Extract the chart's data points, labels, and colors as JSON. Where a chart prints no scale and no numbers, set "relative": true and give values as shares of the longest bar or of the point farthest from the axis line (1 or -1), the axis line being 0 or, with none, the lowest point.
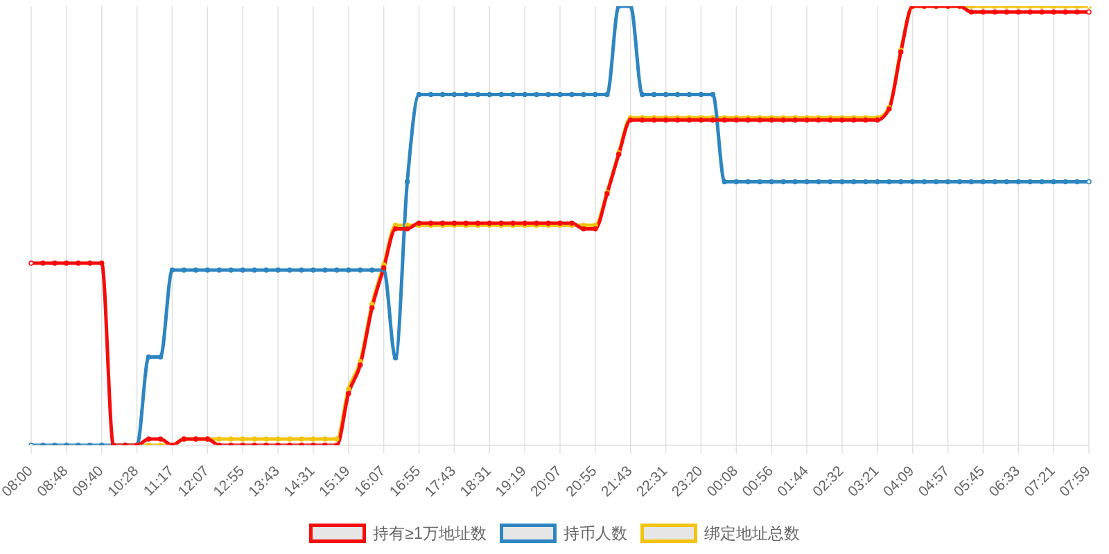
{
  "chart_data": {
    "type": "line",
    "relative": true,
    "categories": [
      "08:00",
      null,
      null,
      "08:48",
      null,
      null,
      "09:40",
      null,
      null,
      "10:28",
      null,
      null,
      "11:17",
      null,
      null,
      "12:07",
      null,
      null,
      "12:55",
      null,
      null,
      "13:43",
      null,
      null,
      "14:31",
      null,
      null,
      "15:19",
      null,
      null,
      "16:07",
      null,
      null,
      "16:55",
      null,
      null,
      "17:43",
      null,
      null,
      "18:31",
      null,
      null,
      "19:19",
      null,
      null,
      "20:07",
      null,
      null,
      "20:55",
      null,
      null,
      "21:43",
      null,
      null,
      "22:31",
      null,
      null,
      "23:20",
      null,
      null,
      "00:08",
      null,
      null,
      "00:56",
      null,
      null,
      "01:44",
      null,
      null,
      "02:32",
      null,
      null,
      "03:21",
      null,
      null,
      "04:09",
      null,
      null,
      "04:57",
      null,
      null,
      "05:45",
      null,
      null,
      "06:33",
      null,
      null,
      "07:21",
      null,
      null,
      "07:59"
    ],
    "series": [
      {
        "name": "持有≥1万地址数",
        "color": "#f50c0c",
        "values": [
          0.415,
          0.415,
          0.415,
          0.415,
          0.415,
          0.415,
          0.415,
          0,
          0,
          0,
          0.014,
          0.014,
          0,
          0.014,
          0.014,
          0.014,
          0,
          0,
          0,
          0,
          0,
          0,
          0,
          0,
          0,
          0,
          0,
          0.118,
          0.183,
          0.313,
          0.404,
          0.493,
          0.493,
          0.506,
          0.506,
          0.506,
          0.506,
          0.506,
          0.506,
          0.506,
          0.506,
          0.506,
          0.506,
          0.506,
          0.506,
          0.506,
          0.506,
          0.493,
          0.493,
          0.573,
          0.663,
          0.741,
          0.741,
          0.741,
          0.741,
          0.741,
          0.741,
          0.741,
          0.741,
          0.741,
          0.741,
          0.741,
          0.741,
          0.741,
          0.741,
          0.741,
          0.741,
          0.741,
          0.741,
          0.741,
          0.741,
          0.741,
          0.741,
          0.766,
          0.896,
          1,
          1,
          1,
          1,
          1,
          0.987,
          0.987,
          0.987,
          0.987,
          0.987,
          0.987,
          0.987,
          0.987,
          0.987,
          0.987,
          0.987
        ]
      },
      {
        "name": "持币人数",
        "color": "#2e86c1",
        "values": [
          0,
          0,
          0,
          0,
          0,
          0,
          0,
          0,
          0,
          0,
          0.201,
          0.201,
          0.399,
          0.399,
          0.399,
          0.399,
          0.399,
          0.399,
          0.399,
          0.399,
          0.399,
          0.399,
          0.399,
          0.399,
          0.399,
          0.399,
          0.399,
          0.399,
          0.399,
          0.399,
          0.399,
          0.199,
          0.6,
          0.799,
          0.799,
          0.799,
          0.799,
          0.799,
          0.799,
          0.799,
          0.799,
          0.799,
          0.799,
          0.799,
          0.799,
          0.799,
          0.799,
          0.799,
          0.799,
          0.799,
          1,
          1,
          0.799,
          0.799,
          0.799,
          0.799,
          0.799,
          0.799,
          0.799,
          0.6,
          0.6,
          0.6,
          0.6,
          0.6,
          0.6,
          0.6,
          0.6,
          0.6,
          0.6,
          0.6,
          0.6,
          0.6,
          0.6,
          0.6,
          0.6,
          0.6,
          0.6,
          0.6,
          0.6,
          0.6,
          0.6,
          0.6,
          0.6,
          0.6,
          0.6,
          0.6,
          0.6,
          0.6,
          0.6,
          0.6,
          0.6
        ]
      },
      {
        "name": "绑定地址总数",
        "color": "#f1c40f",
        "values": [
          null,
          null,
          null,
          null,
          null,
          null,
          null,
          null,
          0,
          0,
          0,
          0,
          0,
          0.014,
          0.014,
          0.014,
          0.014,
          0.014,
          0.014,
          0.014,
          0.014,
          0.014,
          0.014,
          0.014,
          0.014,
          0.014,
          0.014,
          0.128,
          0.191,
          0.321,
          0.411,
          0.501,
          0.501,
          0.501,
          0.501,
          0.501,
          0.501,
          0.501,
          0.501,
          0.501,
          0.501,
          0.501,
          0.501,
          0.501,
          0.501,
          0.501,
          0.501,
          0.501,
          0.501,
          0.576,
          0.666,
          0.746,
          0.746,
          0.746,
          0.746,
          0.746,
          0.746,
          0.746,
          0.746,
          0.746,
          0.746,
          0.746,
          0.746,
          0.746,
          0.746,
          0.746,
          0.746,
          0.746,
          0.746,
          0.746,
          0.746,
          0.746,
          0.746,
          0.769,
          0.9,
          1,
          1,
          1,
          1,
          1,
          1,
          1,
          1,
          1,
          1,
          1,
          1,
          1,
          1,
          1,
          1
        ]
      }
    ],
    "grid": "x",
    "legend": "bottom",
    "marker": "circle",
    "line_style": "solid"
  }
}
